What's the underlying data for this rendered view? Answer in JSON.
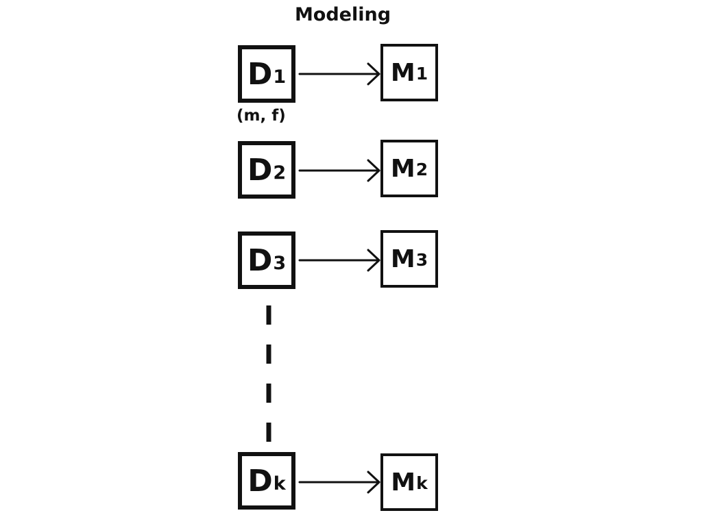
{
  "title": "Modeling",
  "rows": [
    {
      "d_main": "D",
      "d_sub": "1",
      "m_main": "M",
      "m_sub": "1"
    },
    {
      "d_main": "D",
      "d_sub": "2",
      "m_main": "M",
      "m_sub": "2"
    },
    {
      "d_main": "D",
      "d_sub": "3",
      "m_main": "M",
      "m_sub": "3"
    },
    {
      "d_main": "D",
      "d_sub": "k",
      "m_main": "M",
      "m_sub": "k"
    }
  ],
  "annotation": "(m, f)",
  "colors": {
    "stroke": "#111111",
    "background": "#ffffff"
  }
}
